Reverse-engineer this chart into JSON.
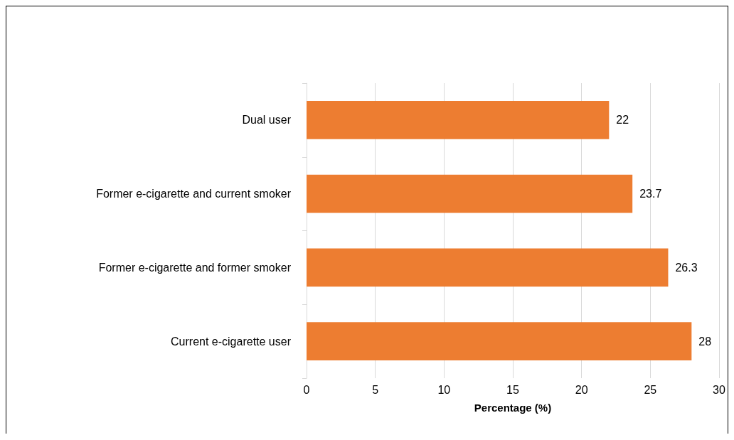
{
  "chart_data": {
    "type": "bar",
    "orientation": "horizontal",
    "xlabel": "Percentage (%)",
    "categories": [
      "Dual user",
      "Former e-cigarette and current smoker",
      "Former e-cigarette and former smoker",
      "Current e-cigarette user"
    ],
    "values": [
      22,
      23.7,
      26.3,
      28
    ],
    "color": "#ed7d31",
    "xlim": [
      0,
      30
    ],
    "xticks": [
      0,
      5,
      10,
      15,
      20,
      25,
      30
    ],
    "grid": "x",
    "data_labels": true
  }
}
